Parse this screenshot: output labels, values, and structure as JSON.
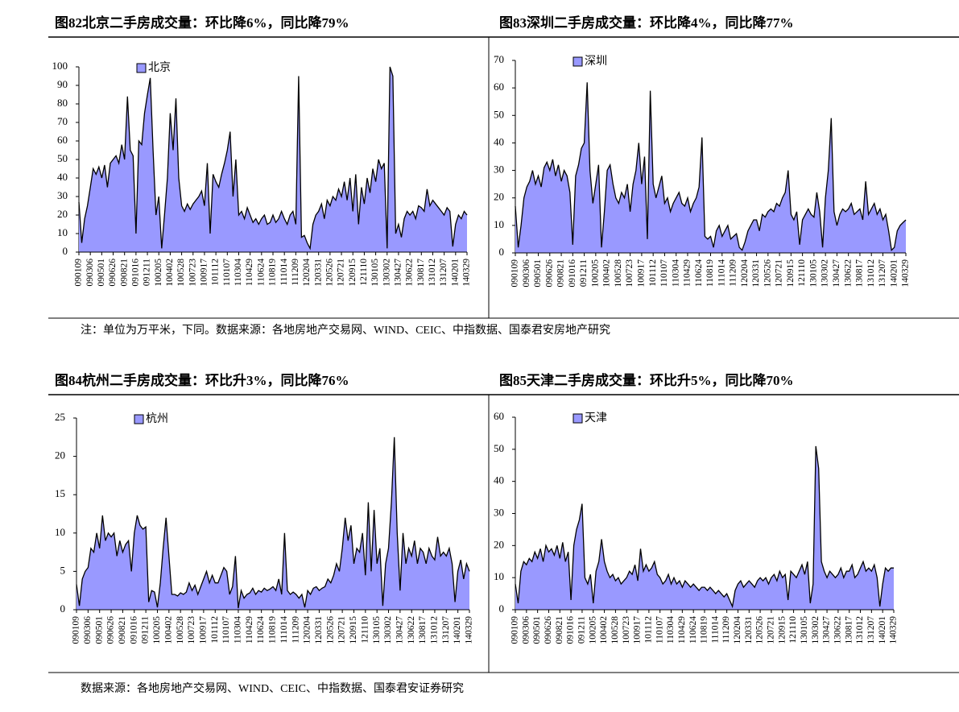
{
  "chart_data": [
    {
      "type": "area",
      "title": "图82北京二手房成交量：环比降6%，同比降79%",
      "categories": [
        "090109",
        null,
        null,
        null,
        "090306",
        null,
        null,
        null,
        "090501",
        null,
        null,
        null,
        "090626",
        null,
        null,
        null,
        "090821",
        null,
        null,
        null,
        "091016",
        null,
        null,
        null,
        "091211",
        null,
        null,
        null,
        "100205",
        null,
        null,
        null,
        "100402",
        null,
        null,
        null,
        "100528",
        null,
        null,
        null,
        "100723",
        null,
        null,
        null,
        "100917",
        null,
        null,
        null,
        "101112",
        null,
        null,
        null,
        "110107",
        null,
        null,
        null,
        "110304",
        null,
        null,
        null,
        "110429",
        null,
        null,
        null,
        "110624",
        null,
        null,
        null,
        "110819",
        null,
        null,
        null,
        "111014",
        null,
        null,
        null,
        "111209",
        null,
        null,
        null,
        "120204",
        null,
        null,
        null,
        "120331",
        null,
        null,
        null,
        "120526",
        null,
        null,
        null,
        "120721",
        null,
        null,
        null,
        "120915",
        null,
        null,
        null,
        "121110",
        null,
        null,
        null,
        "130105",
        null,
        null,
        null,
        "130302",
        null,
        null,
        null,
        "130427",
        null,
        null,
        null,
        "130622",
        null,
        null,
        null,
        "130817",
        null,
        null,
        null,
        "131012",
        null,
        null,
        null,
        "131207",
        null,
        null,
        null,
        "140201",
        null,
        null,
        null,
        "140329"
      ],
      "series": [
        {
          "name": "北京",
          "color": "#9999ff",
          "values": [
            27,
            5,
            18,
            25,
            35,
            45,
            42,
            46,
            40,
            47,
            35,
            48,
            50,
            52,
            48,
            58,
            50,
            84,
            55,
            52,
            10,
            60,
            58,
            75,
            85,
            94,
            55,
            20,
            30,
            2,
            20,
            40,
            75,
            55,
            83,
            40,
            25,
            22,
            26,
            23,
            26,
            28,
            30,
            33,
            25,
            48,
            10,
            42,
            38,
            35,
            42,
            48,
            55,
            65,
            30,
            50,
            20,
            22,
            18,
            24,
            20,
            16,
            18,
            15,
            18,
            20,
            15,
            16,
            20,
            16,
            18,
            22,
            18,
            15,
            20,
            22,
            15,
            95,
            8,
            9,
            5,
            2,
            15,
            20,
            22,
            26,
            18,
            28,
            25,
            30,
            28,
            34,
            30,
            38,
            28,
            40,
            22,
            42,
            15,
            35,
            26,
            40,
            32,
            45,
            38,
            50,
            45,
            48,
            2,
            100,
            95,
            10,
            15,
            8,
            18,
            22,
            20,
            22,
            18,
            25,
            24,
            22,
            34,
            25,
            28,
            26,
            24,
            22,
            20,
            24,
            22,
            3,
            15,
            20,
            18,
            22,
            20
          ]
        }
      ],
      "ylim": [
        0,
        100
      ],
      "yticks": [
        0,
        10,
        20,
        30,
        40,
        50,
        60,
        70,
        80,
        90,
        100
      ]
    },
    {
      "type": "area",
      "title": "图83深圳二手房成交量：环比降4%，同比降77%",
      "categories": [
        "090109",
        null,
        null,
        null,
        "090306",
        null,
        null,
        null,
        "090501",
        null,
        null,
        null,
        "090626",
        null,
        null,
        null,
        "090821",
        null,
        null,
        null,
        "091016",
        null,
        null,
        null,
        "091211",
        null,
        null,
        null,
        "100205",
        null,
        null,
        null,
        "100402",
        null,
        null,
        null,
        "100528",
        null,
        null,
        null,
        "100723",
        null,
        null,
        null,
        "100917",
        null,
        null,
        null,
        "101112",
        null,
        null,
        null,
        "110107",
        null,
        null,
        null,
        "110304",
        null,
        null,
        null,
        "110429",
        null,
        null,
        null,
        "110624",
        null,
        null,
        null,
        "110819",
        null,
        null,
        null,
        "111014",
        null,
        null,
        null,
        "111209",
        null,
        null,
        null,
        "120204",
        null,
        null,
        null,
        "120331",
        null,
        null,
        null,
        "120526",
        null,
        null,
        null,
        "120721",
        null,
        null,
        null,
        "120915",
        null,
        null,
        null,
        "121110",
        null,
        null,
        null,
        "130105",
        null,
        null,
        null,
        "130302",
        null,
        null,
        null,
        "130427",
        null,
        null,
        null,
        "130622",
        null,
        null,
        null,
        "130817",
        null,
        null,
        null,
        "131012",
        null,
        null,
        null,
        "131207",
        null,
        null,
        null,
        "140201",
        null,
        null,
        null,
        "140329"
      ],
      "series": [
        {
          "name": "深圳",
          "color": "#9999ff",
          "values": [
            17,
            2,
            10,
            20,
            24,
            26,
            30,
            25,
            28,
            24,
            31,
            33,
            30,
            34,
            28,
            32,
            26,
            30,
            28,
            22,
            3,
            28,
            32,
            38,
            40,
            62,
            30,
            18,
            25,
            32,
            2,
            15,
            30,
            32,
            25,
            20,
            18,
            22,
            20,
            25,
            15,
            25,
            30,
            40,
            25,
            35,
            5,
            59,
            25,
            20,
            24,
            28,
            18,
            20,
            15,
            18,
            20,
            22,
            18,
            17,
            20,
            15,
            18,
            20,
            24,
            42,
            6,
            5,
            6,
            2,
            8,
            10,
            6,
            8,
            10,
            5,
            6,
            7,
            2,
            1,
            4,
            8,
            10,
            12,
            12,
            8,
            14,
            13,
            15,
            16,
            15,
            18,
            17,
            20,
            22,
            30,
            14,
            12,
            15,
            3,
            12,
            14,
            16,
            14,
            13,
            22,
            15,
            2,
            20,
            30,
            49,
            15,
            10,
            14,
            16,
            15,
            16,
            18,
            14,
            15,
            16,
            12,
            26,
            14,
            16,
            18,
            14,
            16,
            12,
            14,
            8,
            1,
            2,
            8,
            10,
            11,
            12
          ]
        }
      ],
      "ylim": [
        0,
        70
      ],
      "yticks": [
        0,
        10,
        20,
        30,
        40,
        50,
        60,
        70
      ]
    },
    {
      "type": "area",
      "title": "图84杭州二手房成交量：环比升3%，同比降76%",
      "categories": [
        "090109",
        null,
        null,
        null,
        "090306",
        null,
        null,
        null,
        "090501",
        null,
        null,
        null,
        "090626",
        null,
        null,
        null,
        "090821",
        null,
        null,
        null,
        "091016",
        null,
        null,
        null,
        "091211",
        null,
        null,
        null,
        "100205",
        null,
        null,
        null,
        "100402",
        null,
        null,
        null,
        "100528",
        null,
        null,
        null,
        "100723",
        null,
        null,
        null,
        "100917",
        null,
        null,
        null,
        "101112",
        null,
        null,
        null,
        "110107",
        null,
        null,
        null,
        "110304",
        null,
        null,
        null,
        "110429",
        null,
        null,
        null,
        "110624",
        null,
        null,
        null,
        "110819",
        null,
        null,
        null,
        "111014",
        null,
        null,
        null,
        "111209",
        null,
        null,
        null,
        "120204",
        null,
        null,
        null,
        "120331",
        null,
        null,
        null,
        "120526",
        null,
        null,
        null,
        "120721",
        null,
        null,
        null,
        "120915",
        null,
        null,
        null,
        "121110",
        null,
        null,
        null,
        "130105",
        null,
        null,
        null,
        "130302",
        null,
        null,
        null,
        "130427",
        null,
        null,
        null,
        "130622",
        null,
        null,
        null,
        "130817",
        null,
        null,
        null,
        "131012",
        null,
        null,
        null,
        "131207",
        null,
        null,
        null,
        "140201",
        null,
        null,
        null,
        "140329"
      ],
      "series": [
        {
          "name": "杭州",
          "color": "#9999ff",
          "values": [
            3.3,
            0.5,
            4,
            5,
            5.5,
            8,
            7.5,
            10,
            8,
            12.3,
            9,
            10,
            9.5,
            10,
            7,
            9,
            7.5,
            8.5,
            9,
            5,
            10,
            12.3,
            11,
            10.5,
            10.8,
            1,
            2.5,
            2.3,
            0.3,
            3.5,
            8,
            12,
            7,
            2,
            2,
            1.8,
            2.2,
            2,
            2.3,
            3.5,
            2.5,
            3.2,
            2,
            3,
            4,
            5,
            3.5,
            4.5,
            3.5,
            3.5,
            4.5,
            5.5,
            5,
            2,
            3,
            7,
            0.2,
            2.5,
            1.5,
            2,
            2.2,
            2.8,
            2,
            2.5,
            2.3,
            2.8,
            2.5,
            2.7,
            3,
            2.5,
            4,
            2,
            10,
            2.5,
            2,
            2.3,
            2,
            1.5,
            2,
            0.3,
            2.5,
            2,
            2.8,
            3,
            2.5,
            2.8,
            3,
            4,
            3.5,
            4.5,
            6,
            5,
            8,
            12,
            9,
            11,
            6,
            8,
            7.5,
            10,
            4.5,
            14,
            5,
            13,
            6,
            8,
            0.5,
            6,
            8,
            14,
            22.5,
            10,
            2.5,
            10,
            6,
            8,
            7,
            9,
            6,
            8,
            7.5,
            6,
            8,
            7,
            6.5,
            9.5,
            7,
            7.5,
            7,
            8,
            6,
            1,
            5,
            6.5,
            4,
            6,
            5
          ]
        }
      ],
      "ylim": [
        0,
        25
      ],
      "yticks": [
        0,
        5,
        10,
        15,
        20,
        25
      ]
    },
    {
      "type": "area",
      "title": "图85天津二手房成交量：环比升5%，同比降70%",
      "categories": [
        "090109",
        null,
        null,
        null,
        "090306",
        null,
        null,
        null,
        "090501",
        null,
        null,
        null,
        "090626",
        null,
        null,
        null,
        "090821",
        null,
        null,
        null,
        "091016",
        null,
        null,
        null,
        "091211",
        null,
        null,
        null,
        "100205",
        null,
        null,
        null,
        "100402",
        null,
        null,
        null,
        "100528",
        null,
        null,
        null,
        "100723",
        null,
        null,
        null,
        "100917",
        null,
        null,
        null,
        "101112",
        null,
        null,
        null,
        "110107",
        null,
        null,
        null,
        "110304",
        null,
        null,
        null,
        "110429",
        null,
        null,
        null,
        "110624",
        null,
        null,
        null,
        "110819",
        null,
        null,
        null,
        "111014",
        null,
        null,
        null,
        "111209",
        null,
        null,
        null,
        "120204",
        null,
        null,
        null,
        "120331",
        null,
        null,
        null,
        "120526",
        null,
        null,
        null,
        "120721",
        null,
        null,
        null,
        "120915",
        null,
        null,
        null,
        "121110",
        null,
        null,
        null,
        "130105",
        null,
        null,
        null,
        "130302",
        null,
        null,
        null,
        "130427",
        null,
        null,
        null,
        "130622",
        null,
        null,
        null,
        "130817",
        null,
        null,
        null,
        "131012",
        null,
        null,
        null,
        "131207",
        null,
        null,
        null,
        "140201",
        null,
        null,
        null,
        "140329"
      ],
      "series": [
        {
          "name": "天津",
          "color": "#9999ff",
          "values": [
            8,
            2,
            12,
            15,
            14,
            16,
            15,
            18,
            16,
            19,
            15,
            20,
            18,
            19,
            17,
            20,
            16,
            21,
            15,
            18,
            3,
            20,
            25,
            28,
            33,
            10,
            8,
            11,
            2,
            12,
            15,
            22,
            15,
            12,
            10,
            11,
            9,
            10,
            8,
            9,
            10,
            12,
            11,
            14,
            9,
            19,
            12,
            14,
            12,
            13,
            15,
            11,
            10,
            8,
            9,
            11,
            8,
            10,
            8,
            9,
            7,
            9,
            8,
            7,
            8,
            7,
            6,
            7,
            7,
            6,
            7,
            6,
            5,
            6,
            5,
            4,
            5,
            3,
            1,
            6,
            8,
            9,
            7,
            8,
            9,
            8,
            7,
            9,
            10,
            9,
            10,
            8,
            10,
            11,
            9,
            12,
            10,
            11,
            3,
            12,
            11,
            10,
            12,
            14,
            11,
            15,
            2,
            8,
            51,
            44,
            15,
            12,
            10,
            12,
            11,
            10,
            11,
            13,
            10,
            12,
            12,
            14,
            10,
            11,
            13,
            15,
            12,
            13,
            12,
            14,
            10,
            1,
            8,
            13,
            12,
            13,
            13
          ]
        }
      ],
      "ylim": [
        0,
        60
      ],
      "yticks": [
        0,
        10,
        20,
        30,
        40,
        50,
        60
      ]
    }
  ],
  "notes": [
    "注：单位为万平米，下同。数据来源：各地房地产交易网、WIND、CEIC、中指数据、国泰君安房地产研究",
    "数据来源：各地房地产交易网、WIND、CEIC、中指数据、国泰君安证券研究"
  ]
}
